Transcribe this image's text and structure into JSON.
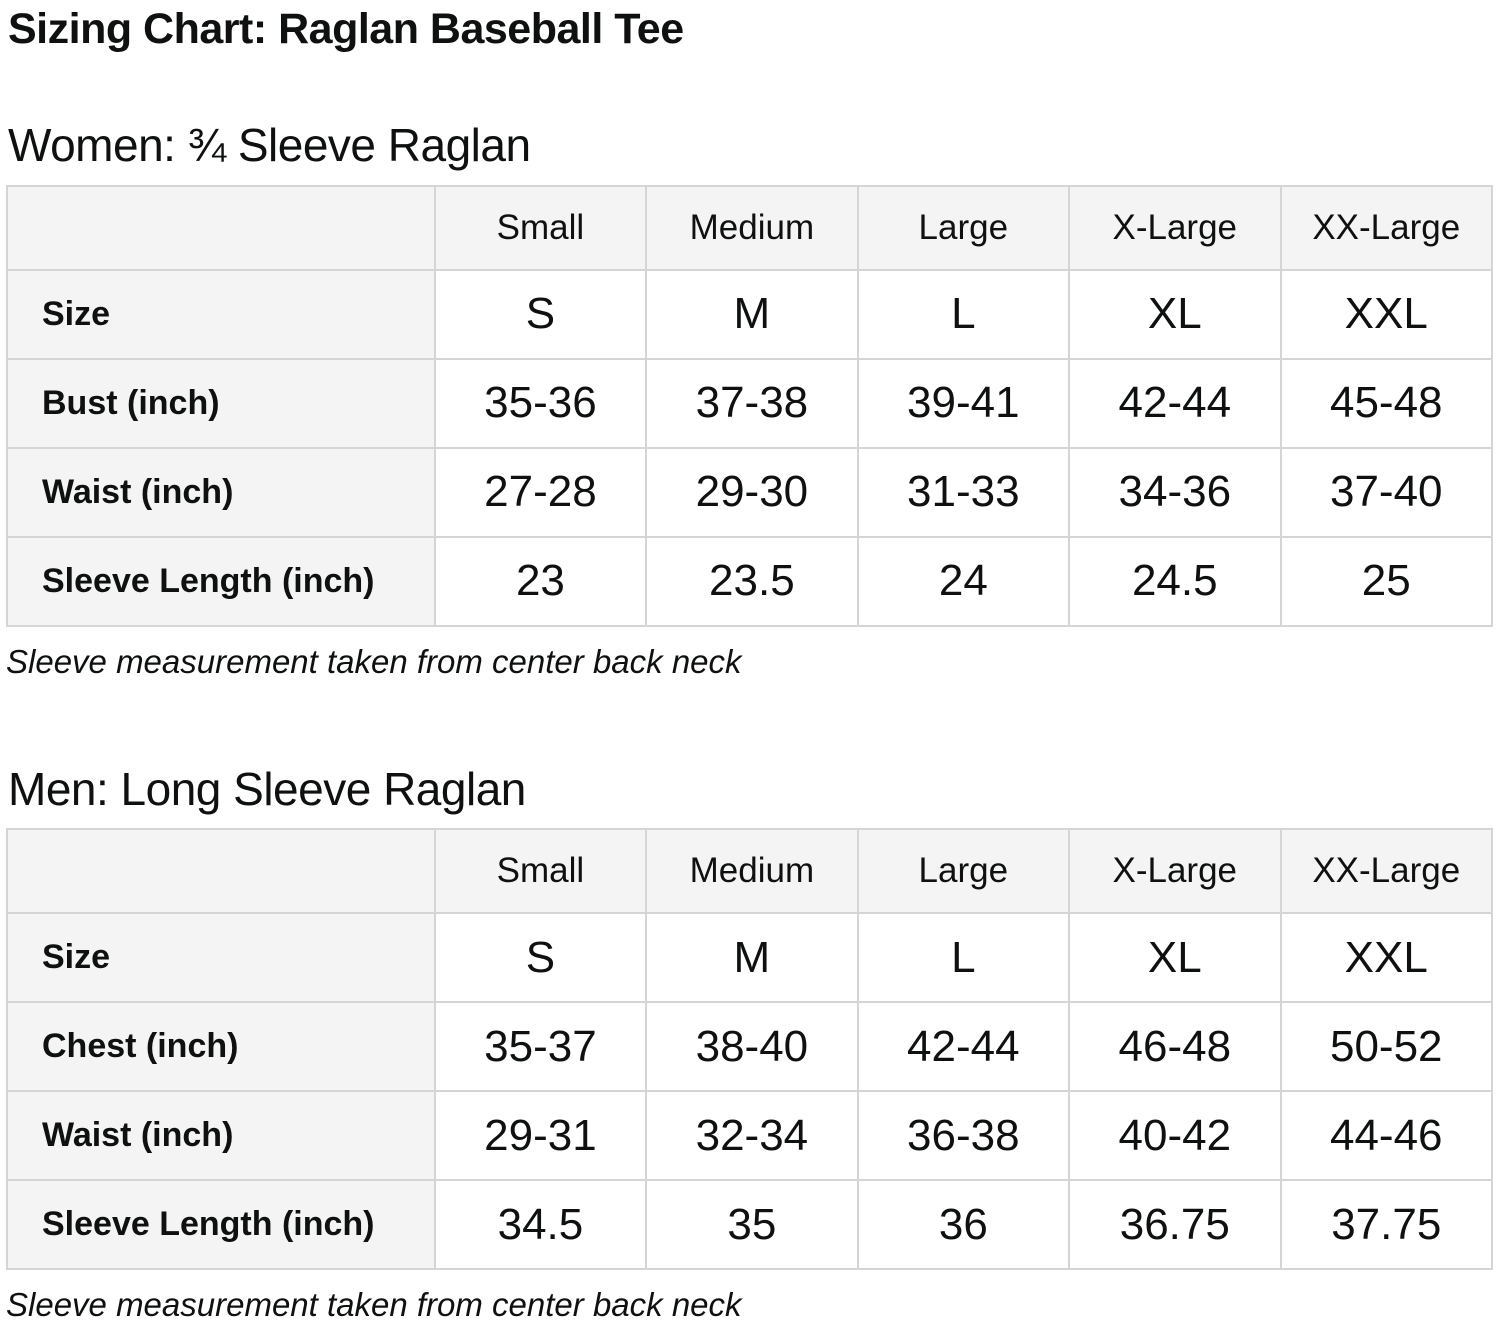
{
  "page": {
    "title": "Sizing Chart: Raglan Baseball Tee"
  },
  "colors": {
    "header_cell_bg": "#f4f4f4",
    "data_cell_bg": "#ffffff",
    "border": "#d5d5d5",
    "text": "#0f1111"
  },
  "sections": [
    {
      "heading": "Women: ¾ Sleeve Raglan",
      "note": "Sleeve measurement taken from center back neck",
      "table": {
        "columns": [
          "",
          "Small",
          "Medium",
          "Large",
          "X-Large",
          "XX-Large"
        ],
        "rows": [
          {
            "label": "Size",
            "values": [
              "S",
              "M",
              "L",
              "XL",
              "XXL"
            ]
          },
          {
            "label": "Bust (inch)",
            "values": [
              "35-36",
              "37-38",
              "39-41",
              "42-44",
              "45-48"
            ]
          },
          {
            "label": "Waist (inch)",
            "values": [
              "27-28",
              "29-30",
              "31-33",
              "34-36",
              "37-40"
            ]
          },
          {
            "label": "Sleeve Length (inch)",
            "values": [
              "23",
              "23.5",
              "24",
              "24.5",
              "25"
            ]
          }
        ]
      }
    },
    {
      "heading": "Men: Long Sleeve Raglan",
      "note": "Sleeve measurement taken from center back neck",
      "table": {
        "columns": [
          "",
          "Small",
          "Medium",
          "Large",
          "X-Large",
          "XX-Large"
        ],
        "rows": [
          {
            "label": "Size",
            "values": [
              "S",
              "M",
              "L",
              "XL",
              "XXL"
            ]
          },
          {
            "label": "Chest (inch)",
            "values": [
              "35-37",
              "38-40",
              "42-44",
              "46-48",
              "50-52"
            ]
          },
          {
            "label": "Waist (inch)",
            "values": [
              "29-31",
              "32-34",
              "36-38",
              "40-42",
              "44-46"
            ]
          },
          {
            "label": "Sleeve Length (inch)",
            "values": [
              "34.5",
              "35",
              "36",
              "36.75",
              "37.75"
            ]
          }
        ]
      }
    }
  ]
}
